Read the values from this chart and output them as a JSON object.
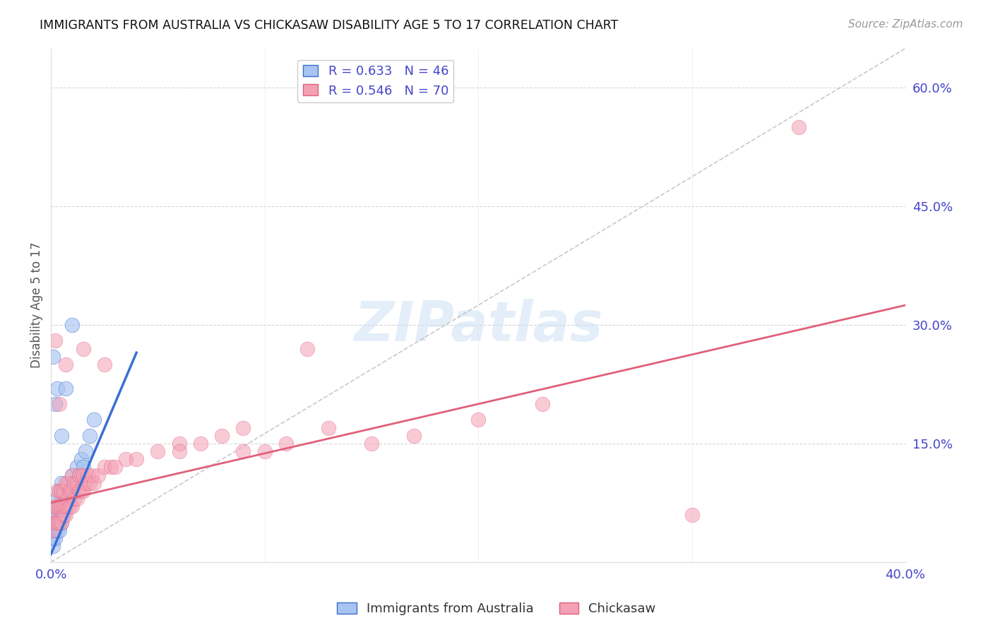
{
  "title": "IMMIGRANTS FROM AUSTRALIA VS CHICKASAW DISABILITY AGE 5 TO 17 CORRELATION CHART",
  "source": "Source: ZipAtlas.com",
  "ylabel": "Disability Age 5 to 17",
  "x_tick_labels": [
    "0.0%",
    "",
    "",
    "",
    "40.0%"
  ],
  "x_tick_values": [
    0.0,
    0.1,
    0.2,
    0.3,
    0.4
  ],
  "y_tick_labels_right": [
    "15.0%",
    "30.0%",
    "45.0%",
    "60.0%"
  ],
  "y_tick_values_right": [
    0.15,
    0.3,
    0.45,
    0.6
  ],
  "xlim": [
    0.0,
    0.4
  ],
  "ylim": [
    0.0,
    0.65
  ],
  "legend_entry1": "R = 0.633   N = 46",
  "legend_entry2": "R = 0.546   N = 70",
  "legend_label1": "Immigrants from Australia",
  "legend_label2": "Chickasaw",
  "color_australia": "#A8C4F0",
  "color_chickasaw": "#F4A0B5",
  "color_trendline_australia": "#3B6FD4",
  "color_trendline_chickasaw": "#E0607A",
  "color_refline": "#BBBBBB",
  "color_axis_labels": "#4444CC",
  "aus_trend_x": [
    0.0,
    0.04
  ],
  "aus_trend_y": [
    0.01,
    0.265
  ],
  "chick_trend_x": [
    0.0,
    0.4
  ],
  "chick_trend_y": [
    0.075,
    0.325
  ],
  "ref_line_x": [
    0.0,
    0.4
  ],
  "ref_line_y": [
    0.0,
    0.65
  ],
  "australia_x": [
    0.001,
    0.001,
    0.001,
    0.001,
    0.001,
    0.002,
    0.002,
    0.002,
    0.002,
    0.003,
    0.003,
    0.003,
    0.003,
    0.004,
    0.004,
    0.004,
    0.004,
    0.004,
    0.005,
    0.005,
    0.005,
    0.005,
    0.006,
    0.006,
    0.006,
    0.007,
    0.007,
    0.008,
    0.009,
    0.009,
    0.01,
    0.01,
    0.011,
    0.012,
    0.013,
    0.014,
    0.015,
    0.016,
    0.018,
    0.02,
    0.001,
    0.002,
    0.003,
    0.005,
    0.007,
    0.01
  ],
  "australia_y": [
    0.02,
    0.03,
    0.04,
    0.05,
    0.06,
    0.03,
    0.04,
    0.05,
    0.07,
    0.04,
    0.05,
    0.06,
    0.08,
    0.04,
    0.05,
    0.06,
    0.07,
    0.09,
    0.05,
    0.06,
    0.07,
    0.1,
    0.06,
    0.07,
    0.09,
    0.07,
    0.08,
    0.09,
    0.08,
    0.1,
    0.09,
    0.11,
    0.1,
    0.12,
    0.11,
    0.13,
    0.12,
    0.14,
    0.16,
    0.18,
    0.26,
    0.2,
    0.22,
    0.16,
    0.22,
    0.3
  ],
  "chickasaw_x": [
    0.001,
    0.001,
    0.002,
    0.002,
    0.003,
    0.003,
    0.003,
    0.004,
    0.004,
    0.004,
    0.005,
    0.005,
    0.005,
    0.006,
    0.006,
    0.006,
    0.007,
    0.007,
    0.007,
    0.008,
    0.008,
    0.008,
    0.009,
    0.009,
    0.01,
    0.01,
    0.01,
    0.011,
    0.011,
    0.012,
    0.012,
    0.013,
    0.013,
    0.014,
    0.014,
    0.015,
    0.015,
    0.016,
    0.017,
    0.018,
    0.019,
    0.02,
    0.022,
    0.025,
    0.028,
    0.03,
    0.035,
    0.04,
    0.05,
    0.06,
    0.07,
    0.08,
    0.09,
    0.1,
    0.11,
    0.13,
    0.15,
    0.17,
    0.2,
    0.23,
    0.002,
    0.004,
    0.007,
    0.015,
    0.025,
    0.06,
    0.09,
    0.12,
    0.35,
    0.3
  ],
  "chickasaw_y": [
    0.04,
    0.06,
    0.05,
    0.07,
    0.05,
    0.07,
    0.09,
    0.05,
    0.07,
    0.09,
    0.05,
    0.07,
    0.09,
    0.06,
    0.07,
    0.09,
    0.06,
    0.07,
    0.1,
    0.07,
    0.08,
    0.1,
    0.07,
    0.09,
    0.07,
    0.09,
    0.11,
    0.08,
    0.1,
    0.08,
    0.1,
    0.09,
    0.11,
    0.09,
    0.11,
    0.09,
    0.11,
    0.1,
    0.11,
    0.1,
    0.11,
    0.1,
    0.11,
    0.12,
    0.12,
    0.12,
    0.13,
    0.13,
    0.14,
    0.15,
    0.15,
    0.16,
    0.17,
    0.14,
    0.15,
    0.17,
    0.15,
    0.16,
    0.18,
    0.2,
    0.28,
    0.2,
    0.25,
    0.27,
    0.25,
    0.14,
    0.14,
    0.27,
    0.55,
    0.06
  ]
}
